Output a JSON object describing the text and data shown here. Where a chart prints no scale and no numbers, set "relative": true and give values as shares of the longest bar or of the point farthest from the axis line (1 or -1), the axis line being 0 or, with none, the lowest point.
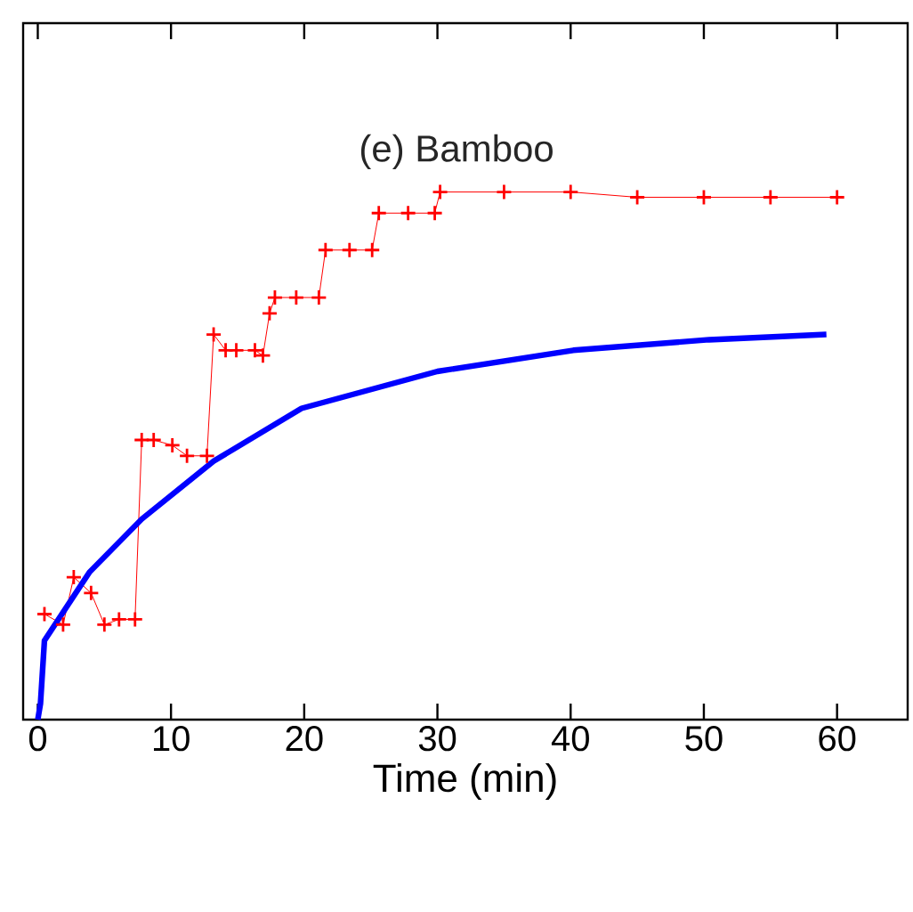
{
  "chart_data": {
    "type": "line",
    "title": "(e) Bamboo",
    "xlabel": "Time (min)",
    "relative": true,
    "xlim": [
      -1.1,
      65.3
    ],
    "xticks": [
      0,
      10,
      20,
      30,
      40,
      50,
      60
    ],
    "series": [
      {
        "color": "#ff0000",
        "marker": "cross",
        "x": [
          0.5,
          1.9,
          2.7,
          4.0,
          5.0,
          6.1,
          7.3,
          7.8,
          8.7,
          10.1,
          11.2,
          12.7,
          13.2,
          14.1,
          14.9,
          16.3,
          16.9,
          17.4,
          17.8,
          19.4,
          21.1,
          21.6,
          23.4,
          25.1,
          25.6,
          27.8,
          29.8,
          30.2,
          35,
          40,
          45,
          50,
          55,
          60
        ],
        "values": [
          0.2,
          0.18,
          0.27,
          0.24,
          0.18,
          0.19,
          0.19,
          0.53,
          0.53,
          0.52,
          0.5,
          0.5,
          0.73,
          0.7,
          0.7,
          0.7,
          0.69,
          0.77,
          0.8,
          0.8,
          0.8,
          0.89,
          0.89,
          0.89,
          0.96,
          0.96,
          0.96,
          1.0,
          1.0,
          1.0,
          0.99,
          0.99,
          0.99,
          0.99
        ]
      },
      {
        "color": "#0000ff",
        "marker": "none",
        "x": [
          0,
          0.2,
          0.5,
          3.9,
          7.8,
          13.2,
          19.8,
          30,
          40.2,
          50.4,
          59.2
        ],
        "values": [
          0,
          0.03,
          0.15,
          0.28,
          0.38,
          0.49,
          0.59,
          0.66,
          0.7,
          0.72,
          0.73
        ]
      }
    ]
  }
}
